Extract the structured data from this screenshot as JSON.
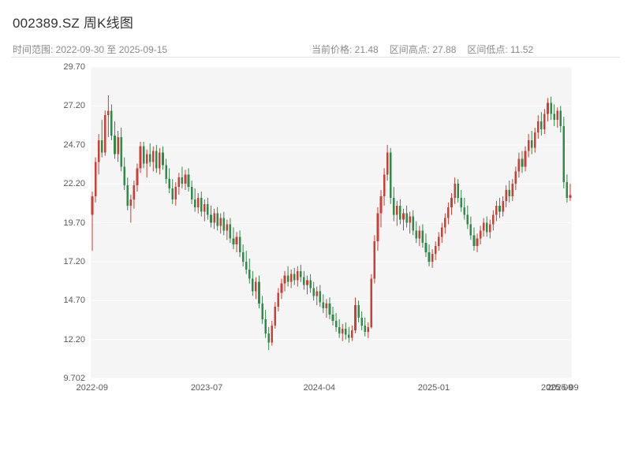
{
  "header": {
    "title": "002389.SZ 周K线图",
    "time_range": "时间范围: 2022-09-30 至 2025-09-15",
    "current_price": "当前价格: 21.48",
    "range_high": "区间高点: 27.88",
    "range_low": "区间低点: 11.52"
  },
  "chart_data": {
    "type": "candlestick",
    "title": "002389.SZ 周K线图",
    "interval": "weekly",
    "date_range": [
      "2022-09-30",
      "2025-09-15"
    ],
    "stats": {
      "current_price": 21.48,
      "range_high": 27.88,
      "range_low": 11.52
    },
    "ylim": [
      9.702,
      29.7
    ],
    "y_ticks": [
      29.7,
      27.2,
      24.7,
      22.2,
      19.7,
      17.2,
      14.7,
      12.2,
      9.702
    ],
    "y_tick_labels": [
      "29.70",
      "27.20",
      "24.70",
      "22.20",
      "19.70",
      "17.20",
      "14.70",
      "12.20",
      "9.702"
    ],
    "x_ticks": [
      {
        "pos": 0.003,
        "label": "2022-09"
      },
      {
        "pos": 0.241,
        "label": "2023-07"
      },
      {
        "pos": 0.475,
        "label": "2024-04"
      },
      {
        "pos": 0.713,
        "label": "2025-01"
      },
      {
        "pos": 0.969,
        "label": "2025-09"
      },
      {
        "pos": 0.981,
        "label": "2025-09"
      }
    ],
    "grid": "white horizontal gridlines on light gray panel",
    "legend": "none",
    "plot_bg": "#f5f5f5",
    "up_color": "#cb3f35",
    "down_color": "#2e8b4a",
    "candles_format": [
      "open",
      "high",
      "low",
      "close"
    ],
    "candles": [
      [
        20.2,
        21.7,
        17.9,
        21.4
      ],
      [
        21.4,
        23.9,
        21.0,
        23.6
      ],
      [
        23.6,
        25.4,
        22.8,
        25.0
      ],
      [
        25.0,
        26.3,
        23.9,
        24.2
      ],
      [
        24.2,
        26.9,
        24.0,
        26.6
      ],
      [
        26.6,
        27.88,
        25.2,
        26.9
      ],
      [
        26.9,
        27.3,
        25.0,
        25.3
      ],
      [
        25.3,
        26.2,
        23.8,
        24.1
      ],
      [
        24.1,
        25.6,
        23.6,
        25.2
      ],
      [
        25.2,
        25.8,
        23.0,
        23.3
      ],
      [
        23.3,
        23.9,
        21.8,
        22.1
      ],
      [
        22.1,
        22.6,
        20.5,
        20.8
      ],
      [
        20.8,
        21.5,
        19.7,
        21.2
      ],
      [
        21.2,
        22.4,
        20.6,
        22.1
      ],
      [
        22.1,
        23.5,
        21.7,
        23.2
      ],
      [
        23.2,
        24.9,
        22.9,
        24.6
      ],
      [
        24.6,
        24.9,
        23.2,
        23.5
      ],
      [
        23.5,
        24.4,
        22.6,
        24.1
      ],
      [
        24.1,
        24.8,
        23.3,
        23.6
      ],
      [
        23.6,
        24.6,
        23.0,
        24.3
      ],
      [
        24.3,
        24.7,
        22.9,
        23.2
      ],
      [
        23.2,
        24.5,
        22.8,
        24.2
      ],
      [
        24.2,
        24.6,
        23.1,
        23.4
      ],
      [
        23.4,
        23.8,
        22.2,
        22.5
      ],
      [
        22.5,
        23.2,
        21.6,
        21.9
      ],
      [
        21.9,
        22.5,
        20.9,
        21.2
      ],
      [
        21.2,
        22.3,
        20.8,
        22.0
      ],
      [
        22.0,
        22.9,
        21.5,
        22.6
      ],
      [
        22.6,
        23.3,
        21.9,
        22.2
      ],
      [
        22.2,
        23.1,
        21.8,
        22.8
      ],
      [
        22.8,
        23.2,
        21.7,
        22.0
      ],
      [
        22.0,
        22.4,
        20.9,
        21.2
      ],
      [
        21.2,
        21.9,
        20.4,
        20.7
      ],
      [
        20.7,
        21.6,
        20.3,
        21.3
      ],
      [
        21.3,
        21.7,
        20.1,
        20.4
      ],
      [
        20.4,
        21.2,
        19.8,
        20.9
      ],
      [
        20.9,
        21.3,
        19.9,
        20.2
      ],
      [
        20.2,
        20.8,
        19.4,
        19.7
      ],
      [
        19.7,
        20.6,
        19.3,
        20.3
      ],
      [
        20.3,
        20.7,
        19.2,
        19.5
      ],
      [
        19.5,
        20.3,
        19.0,
        20.0
      ],
      [
        20.0,
        20.4,
        18.9,
        19.2
      ],
      [
        19.2,
        19.9,
        18.6,
        19.6
      ],
      [
        19.6,
        20.0,
        18.4,
        18.7
      ],
      [
        18.7,
        19.4,
        18.0,
        18.3
      ],
      [
        18.3,
        19.1,
        17.8,
        18.8
      ],
      [
        18.8,
        19.2,
        17.5,
        17.8
      ],
      [
        17.8,
        18.3,
        16.9,
        17.2
      ],
      [
        17.2,
        17.9,
        16.4,
        16.7
      ],
      [
        16.7,
        17.4,
        15.8,
        16.1
      ],
      [
        16.1,
        16.6,
        15.0,
        15.3
      ],
      [
        15.3,
        16.2,
        14.8,
        15.9
      ],
      [
        15.9,
        16.3,
        14.2,
        14.5
      ],
      [
        14.5,
        15.0,
        13.2,
        13.5
      ],
      [
        13.5,
        14.1,
        12.3,
        12.6
      ],
      [
        12.6,
        13.0,
        11.52,
        12.0
      ],
      [
        12.0,
        13.4,
        11.8,
        13.1
      ],
      [
        13.1,
        14.6,
        12.9,
        14.3
      ],
      [
        14.3,
        15.5,
        14.0,
        15.2
      ],
      [
        15.2,
        16.1,
        14.8,
        15.8
      ],
      [
        15.8,
        16.6,
        15.3,
        16.3
      ],
      [
        16.3,
        16.9,
        15.6,
        15.9
      ],
      [
        15.9,
        16.7,
        15.5,
        16.4
      ],
      [
        16.4,
        16.8,
        15.7,
        16.0
      ],
      [
        16.0,
        16.9,
        15.6,
        16.6
      ],
      [
        16.6,
        17.0,
        15.9,
        16.2
      ],
      [
        16.2,
        16.6,
        15.4,
        15.7
      ],
      [
        15.7,
        16.3,
        15.1,
        16.0
      ],
      [
        16.0,
        16.4,
        15.2,
        15.5
      ],
      [
        15.5,
        15.9,
        14.7,
        15.0
      ],
      [
        15.0,
        15.6,
        14.4,
        15.3
      ],
      [
        15.3,
        15.7,
        14.3,
        14.6
      ],
      [
        14.6,
        15.1,
        13.9,
        14.2
      ],
      [
        14.2,
        14.8,
        13.6,
        14.5
      ],
      [
        14.5,
        14.9,
        13.5,
        13.8
      ],
      [
        13.8,
        14.3,
        13.1,
        13.4
      ],
      [
        13.4,
        13.9,
        12.7,
        13.0
      ],
      [
        13.0,
        13.5,
        12.3,
        12.6
      ],
      [
        12.6,
        13.2,
        12.1,
        12.9
      ],
      [
        12.9,
        13.3,
        12.2,
        12.5
      ],
      [
        12.5,
        13.0,
        12.0,
        12.3
      ],
      [
        12.3,
        13.1,
        12.1,
        12.8
      ],
      [
        12.8,
        14.9,
        12.6,
        14.4
      ],
      [
        14.4,
        14.7,
        13.3,
        13.6
      ],
      [
        13.6,
        14.0,
        12.8,
        13.1
      ],
      [
        13.1,
        13.6,
        12.4,
        12.7
      ],
      [
        12.7,
        13.3,
        12.3,
        13.0
      ],
      [
        13.0,
        16.4,
        12.9,
        16.1
      ],
      [
        16.1,
        18.9,
        15.8,
        18.5
      ],
      [
        18.5,
        20.7,
        17.9,
        20.3
      ],
      [
        20.3,
        21.8,
        19.4,
        21.4
      ],
      [
        21.4,
        23.2,
        20.8,
        22.8
      ],
      [
        22.8,
        24.7,
        22.4,
        24.2
      ],
      [
        24.2,
        24.5,
        20.9,
        21.3
      ],
      [
        21.3,
        22.0,
        19.8,
        20.2
      ],
      [
        20.2,
        21.1,
        19.5,
        20.8
      ],
      [
        20.8,
        21.2,
        19.6,
        19.9
      ],
      [
        19.9,
        20.6,
        19.2,
        20.3
      ],
      [
        20.3,
        20.8,
        19.4,
        19.7
      ],
      [
        19.7,
        20.4,
        19.0,
        20.1
      ],
      [
        20.1,
        20.5,
        18.9,
        19.2
      ],
      [
        19.2,
        19.8,
        18.4,
        18.7
      ],
      [
        18.7,
        19.5,
        18.2,
        19.2
      ],
      [
        19.2,
        19.6,
        18.1,
        18.4
      ],
      [
        18.4,
        19.0,
        17.5,
        17.8
      ],
      [
        17.8,
        18.3,
        16.9,
        17.2
      ],
      [
        17.2,
        18.0,
        16.8,
        17.7
      ],
      [
        17.7,
        18.5,
        17.3,
        18.2
      ],
      [
        18.2,
        19.1,
        17.9,
        18.8
      ],
      [
        18.8,
        19.7,
        18.4,
        19.4
      ],
      [
        19.4,
        20.3,
        19.0,
        20.0
      ],
      [
        20.0,
        21.0,
        19.6,
        20.7
      ],
      [
        20.7,
        21.6,
        20.2,
        21.3
      ],
      [
        21.3,
        22.6,
        20.9,
        22.2
      ],
      [
        22.2,
        22.5,
        21.0,
        21.3
      ],
      [
        21.3,
        21.8,
        20.4,
        20.7
      ],
      [
        20.7,
        21.3,
        19.9,
        20.2
      ],
      [
        20.2,
        20.8,
        19.3,
        19.6
      ],
      [
        19.6,
        20.1,
        18.6,
        18.9
      ],
      [
        18.9,
        19.4,
        17.9,
        18.2
      ],
      [
        18.2,
        19.0,
        17.8,
        18.7
      ],
      [
        18.7,
        19.5,
        18.3,
        19.2
      ],
      [
        19.2,
        20.0,
        18.8,
        19.7
      ],
      [
        19.7,
        20.1,
        18.8,
        19.1
      ],
      [
        19.1,
        19.9,
        18.7,
        19.6
      ],
      [
        19.6,
        20.5,
        19.2,
        20.2
      ],
      [
        20.2,
        21.1,
        19.8,
        20.8
      ],
      [
        20.8,
        21.3,
        20.0,
        20.4
      ],
      [
        20.4,
        21.4,
        20.1,
        21.1
      ],
      [
        21.1,
        22.1,
        20.7,
        21.8
      ],
      [
        21.8,
        22.4,
        21.0,
        21.4
      ],
      [
        21.4,
        22.5,
        21.1,
        22.2
      ],
      [
        22.2,
        23.3,
        21.8,
        23.0
      ],
      [
        23.0,
        24.2,
        22.6,
        23.8
      ],
      [
        23.8,
        24.3,
        22.9,
        23.3
      ],
      [
        23.3,
        24.6,
        23.0,
        24.3
      ],
      [
        24.3,
        25.4,
        23.9,
        25.0
      ],
      [
        25.0,
        25.6,
        24.1,
        24.5
      ],
      [
        24.5,
        25.8,
        24.2,
        25.5
      ],
      [
        25.5,
        26.6,
        25.1,
        26.2
      ],
      [
        26.2,
        26.8,
        25.3,
        25.7
      ],
      [
        25.7,
        27.0,
        25.4,
        26.7
      ],
      [
        26.7,
        27.7,
        26.2,
        27.4
      ],
      [
        27.4,
        27.8,
        26.3,
        26.7
      ],
      [
        26.7,
        27.3,
        25.9,
        26.3
      ],
      [
        26.3,
        27.1,
        25.8,
        26.9
      ],
      [
        26.9,
        27.2,
        25.5,
        25.9
      ],
      [
        25.9,
        26.5,
        21.9,
        22.3
      ],
      [
        22.3,
        22.8,
        21.0,
        21.3
      ],
      [
        21.3,
        22.2,
        21.1,
        21.48
      ]
    ]
  }
}
